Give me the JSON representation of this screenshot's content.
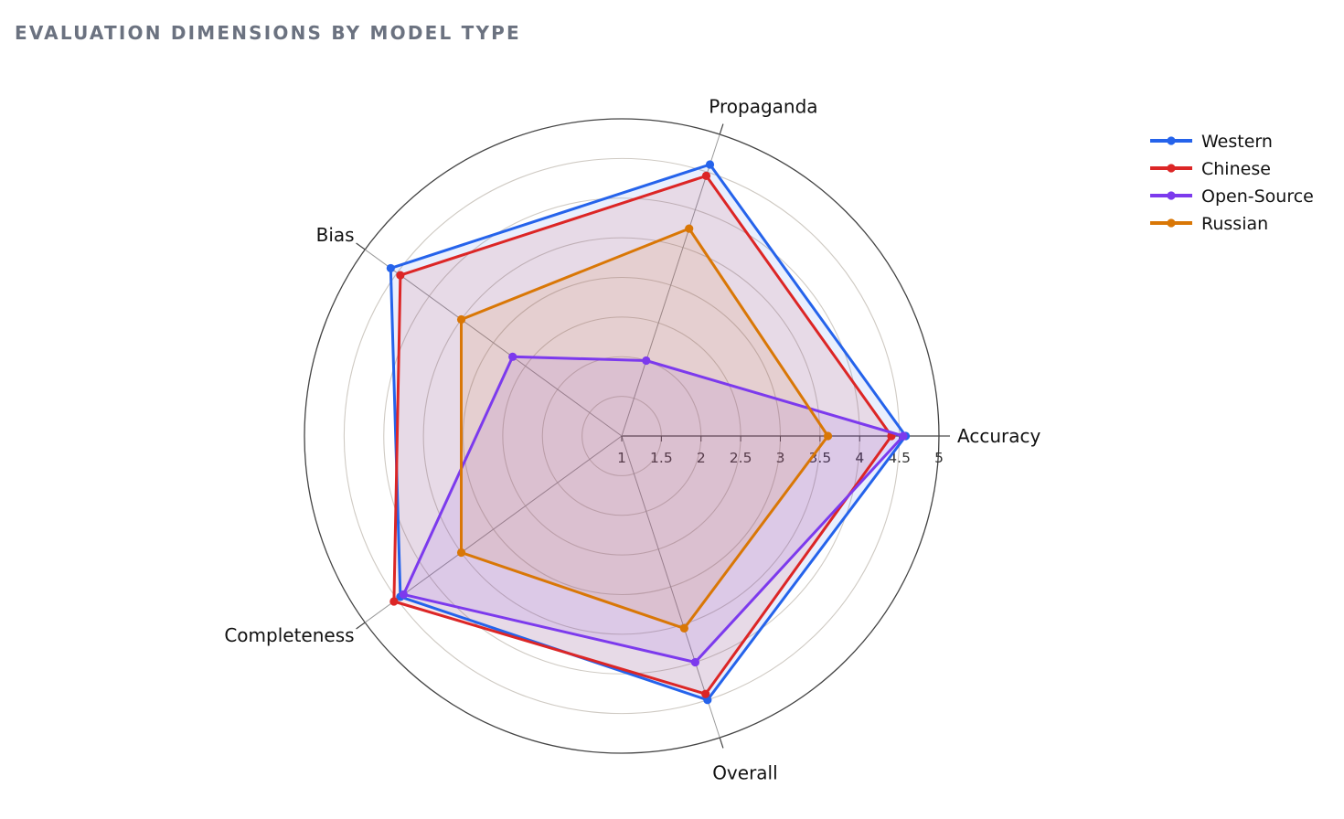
{
  "chart_data": {
    "type": "radar",
    "title": "EVALUATION DIMENSIONS BY MODEL TYPE",
    "axes": [
      "Accuracy",
      "Propaganda",
      "Bias",
      "Completeness",
      "Overall"
    ],
    "radial_range": [
      1,
      5
    ],
    "radial_ticks": [
      "1",
      "1.5",
      "2",
      "2.5",
      "3",
      "3.5",
      "4",
      "4.5",
      "5"
    ],
    "grid": true,
    "legend_position": "top-right",
    "series": [
      {
        "name": "Western",
        "color": "#2563eb",
        "values": [
          4.58,
          4.6,
          4.6,
          4.45,
          4.5
        ]
      },
      {
        "name": "Chinese",
        "color": "#dc2626",
        "values": [
          4.4,
          4.45,
          4.45,
          4.55,
          4.42
        ]
      },
      {
        "name": "Open-Source",
        "color": "#7c3aed",
        "values": [
          4.55,
          2.0,
          2.7,
          4.4,
          4.0
        ]
      },
      {
        "name": "Russian",
        "color": "#d97706",
        "values": [
          3.6,
          3.75,
          3.5,
          3.5,
          3.55
        ]
      }
    ]
  }
}
